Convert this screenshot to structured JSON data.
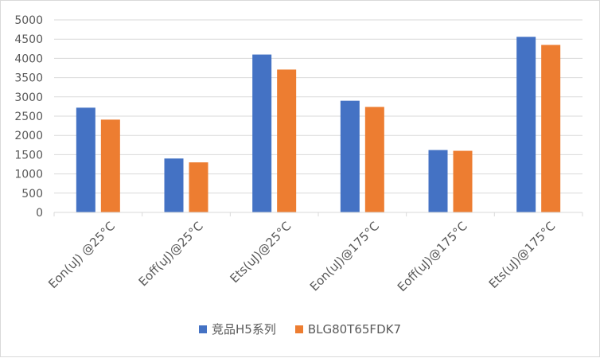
{
  "chart_data": {
    "type": "bar",
    "categories": [
      "Eon(uJ) @25°C",
      "Eoff(uJ)@25°C",
      "Ets(uJ)@25°C",
      "Eon(uJ)@175°C",
      "Eoff(uJ)@175°C",
      "Ets(uJ)@175°C"
    ],
    "series": [
      {
        "name": "竞品H5系列",
        "color": "#4472c4",
        "values": [
          2720,
          1400,
          4100,
          2900,
          1620,
          4560
        ]
      },
      {
        "name": "BLG80T65FDK7",
        "color": "#ed7d31",
        "values": [
          2410,
          1300,
          3710,
          2740,
          1600,
          4350
        ]
      }
    ],
    "ylim": [
      0,
      5000
    ],
    "yticks": [
      "0",
      "500",
      "1000",
      "1500",
      "2000",
      "2500",
      "3000",
      "3500",
      "4000",
      "4500",
      "5000"
    ],
    "grid": true,
    "legend": "bottom",
    "title": "",
    "xlabel": "",
    "ylabel": ""
  }
}
